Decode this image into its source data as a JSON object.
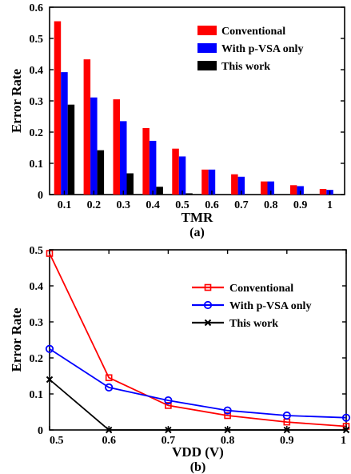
{
  "chart_data": [
    {
      "type": "bar",
      "caption": "(a)",
      "xlabel": "TMR",
      "ylabel": "Error Rate",
      "categories": [
        "0.1",
        "0.2",
        "0.3",
        "0.4",
        "0.5",
        "0.6",
        "0.7",
        "0.8",
        "0.9",
        "1"
      ],
      "ylim": [
        0,
        0.6
      ],
      "yticks": [
        0,
        0.1,
        0.2,
        0.3,
        0.4,
        0.5,
        0.6
      ],
      "ytick_labels": [
        "0",
        "0.1",
        "0.2",
        "0.3",
        "0.4",
        "0.5",
        "0.6"
      ],
      "grid": false,
      "legend_position": "top-right",
      "series": [
        {
          "name": "Conventional",
          "color": "#ff0000",
          "values": [
            0.555,
            0.433,
            0.305,
            0.213,
            0.147,
            0.08,
            0.065,
            0.042,
            0.03,
            0.018
          ]
        },
        {
          "name": "With p-VSA only",
          "color": "#0000ff",
          "values": [
            0.392,
            0.311,
            0.235,
            0.172,
            0.122,
            0.08,
            0.057,
            0.042,
            0.027,
            0.015
          ]
        },
        {
          "name": "This work",
          "color": "#000000",
          "values": [
            0.288,
            0.142,
            0.068,
            0.025,
            0.004,
            0.0,
            0.0,
            0.0,
            0.0,
            0.0
          ]
        }
      ]
    },
    {
      "type": "line",
      "caption": "(b)",
      "xlabel": "VDD (V)",
      "ylabel": "Error Rate",
      "x": [
        0.5,
        0.6,
        0.7,
        0.8,
        0.9,
        1.0
      ],
      "xticks": [
        0.5,
        0.6,
        0.7,
        0.8,
        0.9,
        1.0
      ],
      "xtick_labels": [
        "0.5",
        "0.6",
        "0.7",
        "0.8",
        "0.9",
        "1"
      ],
      "xlim": [
        0.5,
        1.0
      ],
      "ylim": [
        0,
        0.5
      ],
      "yticks": [
        0,
        0.1,
        0.2,
        0.3,
        0.4,
        0.5
      ],
      "ytick_labels": [
        "0",
        "0.1",
        "0.2",
        "0.3",
        "0.4",
        "0.5"
      ],
      "grid": false,
      "legend_position": "top-right",
      "series": [
        {
          "name": "Conventional",
          "color": "#ff0000",
          "marker": "square",
          "values": [
            0.49,
            0.145,
            0.068,
            0.04,
            0.022,
            0.01
          ]
        },
        {
          "name": "With p-VSA only",
          "color": "#0000ff",
          "marker": "circle",
          "values": [
            0.225,
            0.118,
            0.082,
            0.054,
            0.04,
            0.034
          ]
        },
        {
          "name": "This work",
          "color": "#000000",
          "marker": "cross",
          "values": [
            0.14,
            0.0,
            0.0,
            0.0,
            0.0,
            0.0
          ]
        }
      ]
    }
  ]
}
